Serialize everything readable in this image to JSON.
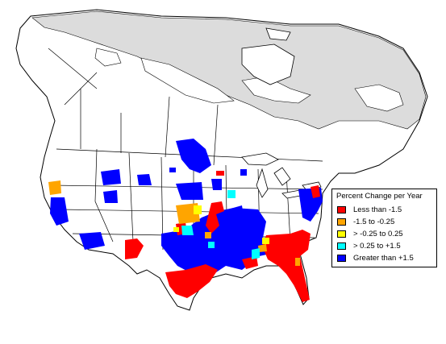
{
  "map": {
    "region": "North America",
    "colors": {
      "land": "#ffffff",
      "boreal_out_of_range": "#dcdcdc",
      "borders": "#000000",
      "water": "#ffffff"
    }
  },
  "legend": {
    "title": "Percent Change per Year",
    "items": [
      {
        "label": "Less than -1.5",
        "color": "#ff0000"
      },
      {
        "label": "-1.5 to -0.25",
        "color": "#ffa500"
      },
      {
        "label": "> -0.25 to 0.25",
        "color": "#ffff00"
      },
      {
        "label": "> 0.25 to +1.5",
        "color": "#00ffff"
      },
      {
        "label": "Greater than +1.5",
        "color": "#0000ff"
      }
    ]
  }
}
